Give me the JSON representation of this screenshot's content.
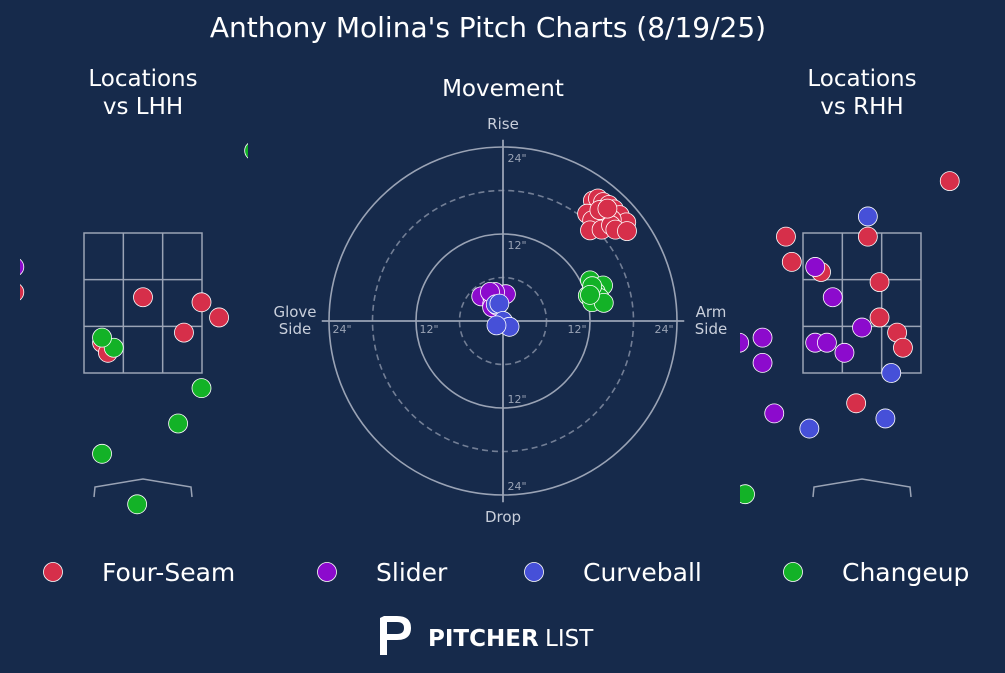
{
  "title": "Anthony Molina's Pitch Charts (8/19/25)",
  "logo": {
    "text_bold": "PITCHER",
    "text_light": "LIST"
  },
  "colors": {
    "background": "#162a4b",
    "Four-Seam": "#d62f4a",
    "Slider": "#8c0bcd",
    "Curveball": "#4650d8",
    "Changeup": "#13b227",
    "gridline": "#9aa3b5"
  },
  "legend": [
    "Four-Seam",
    "Slider",
    "Curveball",
    "Changeup"
  ],
  "chart_data": [
    {
      "type": "scatter",
      "title": "Locations vs LHH",
      "xlabel": "",
      "ylabel": "",
      "series": [
        {
          "name": "Four-Seam",
          "points": [
            [
              -1.3,
              4.6
            ],
            [
              -1.1,
              2.3
            ],
            [
              -0.0,
              2.25
            ],
            [
              0.5,
              2.2
            ],
            [
              0.65,
              2.05
            ],
            [
              1.0,
              2.0
            ],
            [
              1.1,
              1.95
            ],
            [
              -0.35,
              1.8
            ],
            [
              -0.3,
              1.7
            ],
            [
              0.35,
              1.9
            ]
          ]
        },
        {
          "name": "Slider",
          "points": [
            [
              -1.1,
              2.55
            ]
          ]
        },
        {
          "name": "Curveball",
          "points": []
        },
        {
          "name": "Changeup",
          "points": [
            [
              0.95,
              3.7
            ],
            [
              -0.25,
              1.75
            ],
            [
              -0.35,
              1.85
            ],
            [
              1.05,
              2.0
            ],
            [
              0.5,
              1.35
            ],
            [
              0.3,
              1.0
            ],
            [
              -0.35,
              0.7
            ],
            [
              -1.2,
              0.5
            ],
            [
              -0.05,
              0.2
            ]
          ]
        }
      ]
    },
    {
      "type": "scatter",
      "title": "Movement",
      "xlabel": "Glove Side / Arm Side",
      "ylabel": "Drop / Rise",
      "ticks": [
        "12\"",
        "24\""
      ],
      "dir_labels": {
        "top": "Rise",
        "bottom": "Drop",
        "left": "Glove Side",
        "right": "Arm Side"
      },
      "series": [
        {
          "name": "Four-Seam",
          "points": [
            [
              12.4,
              16.6
            ],
            [
              13.1,
              16.9
            ],
            [
              13.8,
              16.4
            ],
            [
              14.6,
              16.0
            ],
            [
              15.3,
              15.4
            ],
            [
              16.1,
              14.6
            ],
            [
              17.0,
              13.6
            ],
            [
              14.0,
              15.1
            ],
            [
              15.0,
              14.0
            ],
            [
              13.0,
              14.6
            ],
            [
              11.6,
              14.8
            ],
            [
              12.3,
              13.9
            ],
            [
              12.0,
              12.5
            ],
            [
              13.6,
              12.6
            ],
            [
              14.9,
              13.2
            ],
            [
              15.5,
              12.6
            ],
            [
              17.1,
              12.4
            ],
            [
              13.3,
              15.3
            ],
            [
              14.4,
              15.5
            ]
          ]
        },
        {
          "name": "Slider",
          "points": [
            [
              -3.0,
              3.4
            ],
            [
              -1.5,
              3.4
            ],
            [
              -0.5,
              3.2
            ],
            [
              -1.5,
              2.3
            ],
            [
              0.4,
              3.7
            ],
            [
              -1.5,
              1.9
            ],
            [
              -1.1,
              4.0
            ],
            [
              -1.8,
              4.0
            ],
            [
              -0.8,
              2.1
            ]
          ]
        },
        {
          "name": "Curveball",
          "points": [
            [
              -1.0,
              2.3
            ],
            [
              -0.5,
              2.4
            ],
            [
              0.0,
              0.0
            ],
            [
              0.9,
              -0.8
            ],
            [
              -0.9,
              -0.6
            ]
          ]
        },
        {
          "name": "Changeup",
          "points": [
            [
              12.0,
              5.6
            ],
            [
              13.8,
              4.9
            ],
            [
              12.8,
              4.0
            ],
            [
              11.7,
              3.5
            ],
            [
              13.3,
              3.2
            ],
            [
              12.3,
              2.6
            ],
            [
              13.9,
              2.5
            ],
            [
              12.3,
              4.8
            ],
            [
              12.0,
              3.6
            ]
          ]
        }
      ]
    },
    {
      "type": "scatter",
      "title": "Locations vs RHH",
      "xlabel": "",
      "ylabel": "",
      "series": [
        {
          "name": "Four-Seam",
          "points": [
            [
              -0.05,
              4.4
            ],
            [
              2.65,
              4.15
            ],
            [
              1.0,
              3.6
            ],
            [
              0.75,
              3.4
            ],
            [
              1.4,
              3.3
            ],
            [
              -0.65,
              2.85
            ],
            [
              -1.55,
              2.75
            ],
            [
              0.05,
              2.85
            ],
            [
              1.7,
              2.7
            ],
            [
              1.95,
              2.75
            ],
            [
              -0.6,
              2.6
            ],
            [
              -0.35,
              2.5
            ],
            [
              0.15,
              2.4
            ],
            [
              0.15,
              2.05
            ],
            [
              0.3,
              1.9
            ],
            [
              -1.45,
              1.7
            ],
            [
              0.35,
              1.75
            ],
            [
              2.05,
              1.8
            ],
            [
              -0.05,
              1.2
            ],
            [
              -1.55,
              1.1
            ],
            [
              -1.65,
              1.25
            ],
            [
              -1.75,
              1.55
            ]
          ]
        },
        {
          "name": "Slider",
          "points": [
            [
              -0.4,
              2.55
            ],
            [
              -0.25,
              2.25
            ],
            [
              -0.85,
              1.85
            ],
            [
              -1.05,
              1.8
            ],
            [
              -0.4,
              1.8
            ],
            [
              -0.3,
              1.8
            ],
            [
              -0.85,
              1.6
            ],
            [
              0.0,
              1.95
            ],
            [
              -1.6,
              1.8
            ],
            [
              -1.7,
              1.65
            ],
            [
              -1.7,
              1.1
            ],
            [
              -1.6,
              1.75
            ],
            [
              -0.15,
              1.7
            ],
            [
              -1.6,
              0.6
            ],
            [
              -0.75,
              1.1
            ],
            [
              -1.3,
              0.7
            ]
          ]
        },
        {
          "name": "Curveball",
          "points": [
            [
              0.05,
              3.05
            ],
            [
              0.25,
              1.5
            ],
            [
              0.2,
              1.05
            ],
            [
              -0.45,
              0.95
            ],
            [
              -1.2,
              0.0
            ]
          ]
        },
        {
          "name": "Changeup",
          "points": [
            [
              -1.0,
              0.3
            ]
          ]
        }
      ]
    }
  ]
}
